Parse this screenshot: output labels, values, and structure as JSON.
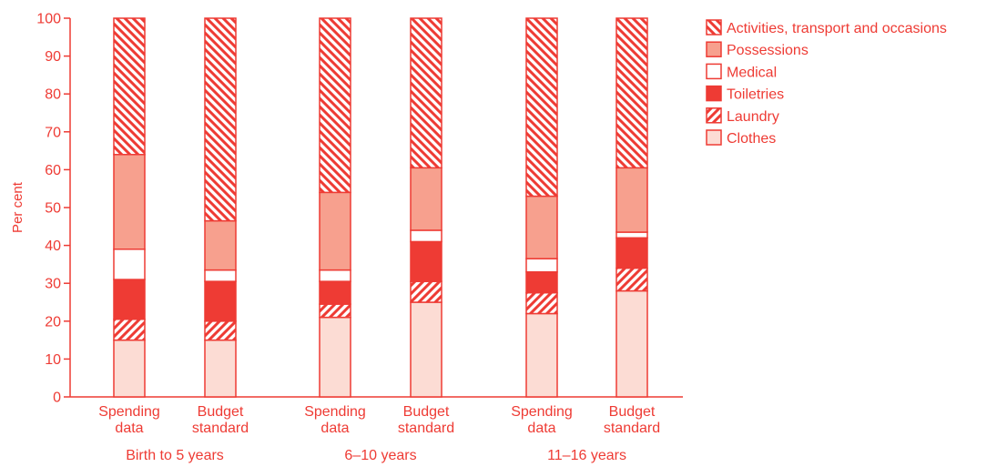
{
  "chart_data": {
    "type": "bar",
    "stacked": true,
    "ylabel": "Per cent",
    "ylim": [
      0,
      100
    ],
    "yticks": [
      0,
      10,
      20,
      30,
      40,
      50,
      60,
      70,
      80,
      90,
      100
    ],
    "grid": false,
    "legend_position": "top-right",
    "groups": [
      {
        "label": "Birth to 5 years",
        "bars": [
          {
            "label": [
              "Spending",
              "data"
            ],
            "values": {
              "clothes": 15,
              "laundry": 5.5,
              "toiletries": 10.5,
              "medical": 8,
              "possessions": 25,
              "activities": 36
            }
          },
          {
            "label": [
              "Budget",
              "standard"
            ],
            "values": {
              "clothes": 15,
              "laundry": 5,
              "toiletries": 10.5,
              "medical": 3,
              "possessions": 13,
              "activities": 53.5
            }
          }
        ]
      },
      {
        "label": "6–10 years",
        "bars": [
          {
            "label": [
              "Spending",
              "data"
            ],
            "values": {
              "clothes": 21,
              "laundry": 3.5,
              "toiletries": 6,
              "medical": 3,
              "possessions": 20.5,
              "activities": 46
            }
          },
          {
            "label": [
              "Budget",
              "standard"
            ],
            "values": {
              "clothes": 25,
              "laundry": 5.5,
              "toiletries": 10.5,
              "medical": 3,
              "possessions": 16.5,
              "activities": 39.5
            }
          }
        ]
      },
      {
        "label": "11–16 years",
        "bars": [
          {
            "label": [
              "Spending",
              "data"
            ],
            "values": {
              "clothes": 22,
              "laundry": 5.5,
              "toiletries": 5.5,
              "medical": 3.5,
              "possessions": 16.5,
              "activities": 47
            }
          },
          {
            "label": [
              "Budget",
              "standard"
            ],
            "values": {
              "clothes": 28,
              "laundry": 6,
              "toiletries": 8,
              "medical": 1.5,
              "possessions": 17,
              "activities": 39.5
            }
          }
        ]
      }
    ],
    "series": [
      {
        "key": "clothes",
        "name": "Clothes",
        "fill": "#fcdcd4",
        "pattern": "solid"
      },
      {
        "key": "laundry",
        "name": "Laundry",
        "fill": "#ffffff",
        "pattern": "hatch-up"
      },
      {
        "key": "toiletries",
        "name": "Toiletries",
        "fill": "#ee3b34",
        "pattern": "solid"
      },
      {
        "key": "medical",
        "name": "Medical",
        "fill": "#ffffff",
        "pattern": "solid"
      },
      {
        "key": "possessions",
        "name": "Possessions",
        "fill": "#f7a08e",
        "pattern": "solid"
      },
      {
        "key": "activities",
        "name": "Activities, transport and occasions",
        "fill": "#ffffff",
        "pattern": "hatch-down"
      }
    ],
    "legend_order": [
      "activities",
      "possessions",
      "medical",
      "toiletries",
      "laundry",
      "clothes"
    ]
  },
  "colors": {
    "accent": "#ee3b34",
    "text": "#ee3b34",
    "stroke": "#ee3b34"
  }
}
